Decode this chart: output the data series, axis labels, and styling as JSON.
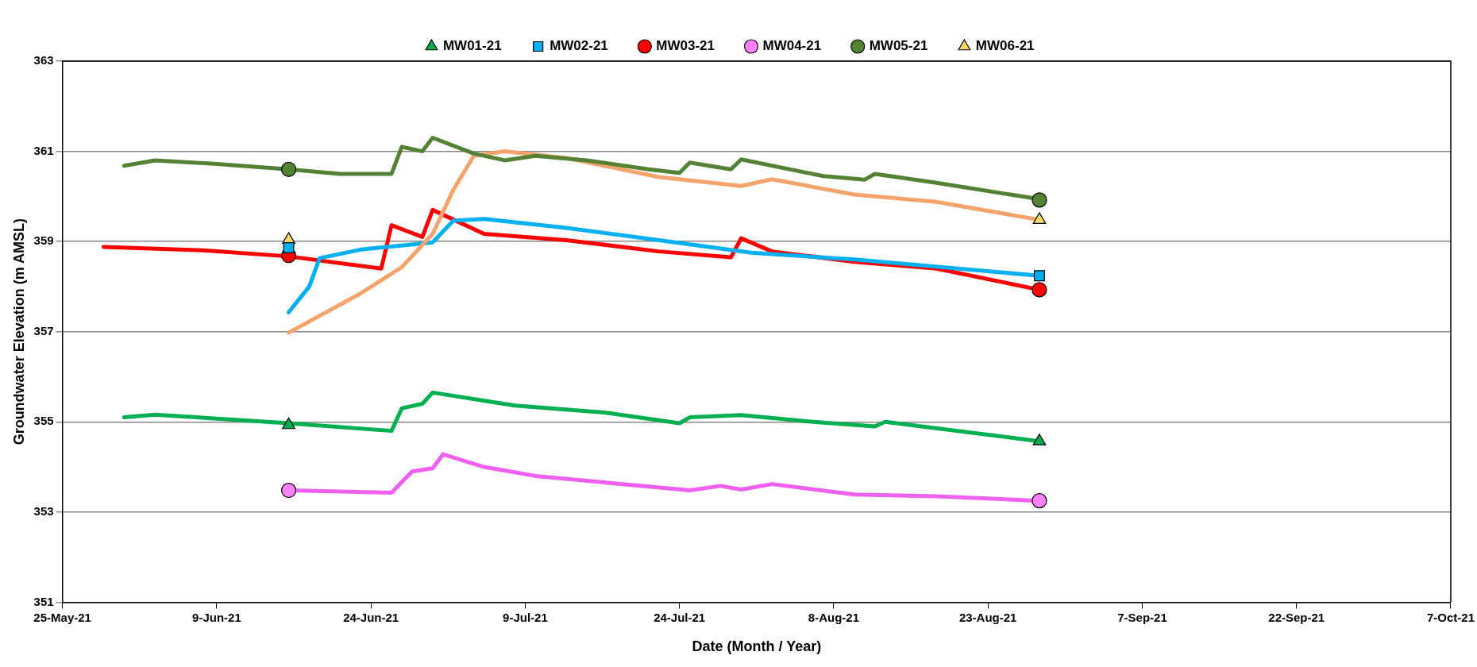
{
  "chart_data": {
    "type": "line",
    "xlabel": "Date (Month / Year)",
    "ylabel": "Groundwater Elevation (m AMSL)",
    "xlim": [
      "2021-05-25",
      "2021-10-07"
    ],
    "xticks": [
      {
        "value": "2021-05-25",
        "label": "25-May-21"
      },
      {
        "value": "2021-06-09",
        "label": "9-Jun-21"
      },
      {
        "value": "2021-06-24",
        "label": "24-Jun-21"
      },
      {
        "value": "2021-07-09",
        "label": "9-Jul-21"
      },
      {
        "value": "2021-07-24",
        "label": "24-Jul-21"
      },
      {
        "value": "2021-08-08",
        "label": "8-Aug-21"
      },
      {
        "value": "2021-08-23",
        "label": "23-Aug-21"
      },
      {
        "value": "2021-09-07",
        "label": "7-Sep-21"
      },
      {
        "value": "2021-09-22",
        "label": "22-Sep-21"
      },
      {
        "value": "2021-10-07",
        "label": "7-Oct-21"
      }
    ],
    "ylim": [
      351,
      363
    ],
    "yticks": [
      351,
      353,
      355,
      357,
      359,
      361,
      363
    ],
    "grid": "y",
    "legend": "top",
    "line_style": "solid",
    "series": [
      {
        "color": "#548235",
        "marker": "none",
        "x": [
          "2021-05-31",
          "2021-06-03",
          "2021-06-09",
          "2021-06-16",
          "2021-06-21",
          "2021-06-26",
          "2021-06-27",
          "2021-06-29",
          "2021-06-30",
          "2021-07-04",
          "2021-07-07",
          "2021-07-10",
          "2021-07-15",
          "2021-07-21",
          "2021-07-24",
          "2021-07-25",
          "2021-07-29",
          "2021-07-30",
          "2021-08-07",
          "2021-08-11",
          "2021-08-12",
          "2021-08-18",
          "2021-08-28"
        ],
        "values": [
          360.68,
          360.8,
          360.72,
          360.6,
          360.5,
          360.5,
          361.1,
          361.0,
          361.3,
          360.95,
          360.8,
          360.9,
          360.8,
          360.6,
          360.52,
          360.75,
          360.6,
          360.82,
          360.45,
          360.37,
          360.5,
          360.3,
          359.94
        ]
      },
      {
        "color": "#f4a46b",
        "marker": "none",
        "x": [
          "2021-06-16",
          "2021-06-23",
          "2021-06-27",
          "2021-06-30",
          "2021-07-02",
          "2021-07-04",
          "2021-07-07",
          "2021-07-13",
          "2021-07-22",
          "2021-07-30",
          "2021-08-02",
          "2021-08-10",
          "2021-08-18",
          "2021-08-28"
        ],
        "values": [
          356.98,
          357.85,
          358.43,
          359.17,
          360.14,
          360.9,
          361.0,
          360.85,
          360.43,
          360.23,
          360.38,
          360.04,
          359.88,
          359.48
        ]
      },
      {
        "color": "#00b0f0",
        "marker": "none",
        "x": [
          "2021-06-16",
          "2021-06-18",
          "2021-06-19",
          "2021-06-23",
          "2021-06-30",
          "2021-07-02",
          "2021-07-05",
          "2021-07-13",
          "2021-07-22",
          "2021-07-31",
          "2021-08-10",
          "2021-08-28"
        ],
        "values": [
          357.43,
          358.0,
          358.63,
          358.82,
          358.98,
          359.46,
          359.5,
          359.3,
          359.03,
          358.75,
          358.6,
          358.24
        ]
      },
      {
        "color": "#ff0000",
        "marker": "none",
        "x": [
          "2021-05-29",
          "2021-06-08",
          "2021-06-16",
          "2021-06-25",
          "2021-06-26",
          "2021-06-29",
          "2021-06-30",
          "2021-07-05",
          "2021-07-13",
          "2021-07-22",
          "2021-07-29",
          "2021-07-30",
          "2021-08-02",
          "2021-08-10",
          "2021-08-18",
          "2021-08-28"
        ],
        "values": [
          358.88,
          358.8,
          358.67,
          358.4,
          359.36,
          359.1,
          359.7,
          359.17,
          359.03,
          358.78,
          358.65,
          359.07,
          358.78,
          358.55,
          358.4,
          357.93
        ]
      },
      {
        "color": "#00b050",
        "marker": "none",
        "x": [
          "2021-05-31",
          "2021-06-03",
          "2021-06-16",
          "2021-06-26",
          "2021-06-27",
          "2021-06-29",
          "2021-06-30",
          "2021-07-08",
          "2021-07-17",
          "2021-07-24",
          "2021-07-25",
          "2021-07-30",
          "2021-08-06",
          "2021-08-12",
          "2021-08-13",
          "2021-08-28"
        ],
        "values": [
          355.1,
          355.16,
          354.97,
          354.8,
          355.3,
          355.4,
          355.65,
          355.36,
          355.2,
          354.97,
          355.1,
          355.15,
          355.0,
          354.9,
          355.0,
          354.57
        ]
      },
      {
        "color": "#f060f0",
        "marker": "none",
        "x": [
          "2021-06-16",
          "2021-06-26",
          "2021-06-28",
          "2021-06-30",
          "2021-07-01",
          "2021-07-05",
          "2021-07-10",
          "2021-07-17",
          "2021-07-25",
          "2021-07-28",
          "2021-07-30",
          "2021-08-02",
          "2021-08-10",
          "2021-08-18",
          "2021-08-28"
        ],
        "values": [
          353.48,
          353.43,
          353.9,
          353.97,
          354.28,
          354.0,
          353.8,
          353.65,
          353.48,
          353.58,
          353.5,
          353.62,
          353.39,
          353.35,
          353.25
        ]
      },
      {
        "type": "scatter",
        "name": "MW01-21",
        "color": "#00b050",
        "marker": "triangle",
        "x": [
          "2021-06-16",
          "2021-08-28"
        ],
        "values": [
          354.93,
          354.57
        ]
      },
      {
        "type": "scatter",
        "name": "MW02-21",
        "color": "#00b0f0",
        "marker": "square",
        "x": [
          "2021-06-16",
          "2021-08-28"
        ],
        "values": [
          358.86,
          358.24
        ]
      },
      {
        "type": "scatter",
        "name": "MW03-21",
        "color": "#ff0000",
        "marker": "circle",
        "x": [
          "2021-06-16",
          "2021-08-28"
        ],
        "values": [
          358.69,
          357.93
        ]
      },
      {
        "type": "scatter",
        "name": "MW04-21",
        "color": "#ff80ff",
        "marker": "circle",
        "x": [
          "2021-06-16",
          "2021-08-28"
        ],
        "values": [
          353.48,
          353.25
        ]
      },
      {
        "type": "scatter",
        "name": "MW05-21",
        "color": "#548235",
        "marker": "circle",
        "x": [
          "2021-06-16",
          "2021-08-28"
        ],
        "values": [
          360.6,
          359.92
        ]
      },
      {
        "type": "scatter",
        "name": "MW06-21",
        "color": "#ffd966",
        "marker": "triangle",
        "x": [
          "2021-06-16",
          "2021-08-28"
        ],
        "values": [
          359.04,
          359.48
        ]
      }
    ]
  }
}
